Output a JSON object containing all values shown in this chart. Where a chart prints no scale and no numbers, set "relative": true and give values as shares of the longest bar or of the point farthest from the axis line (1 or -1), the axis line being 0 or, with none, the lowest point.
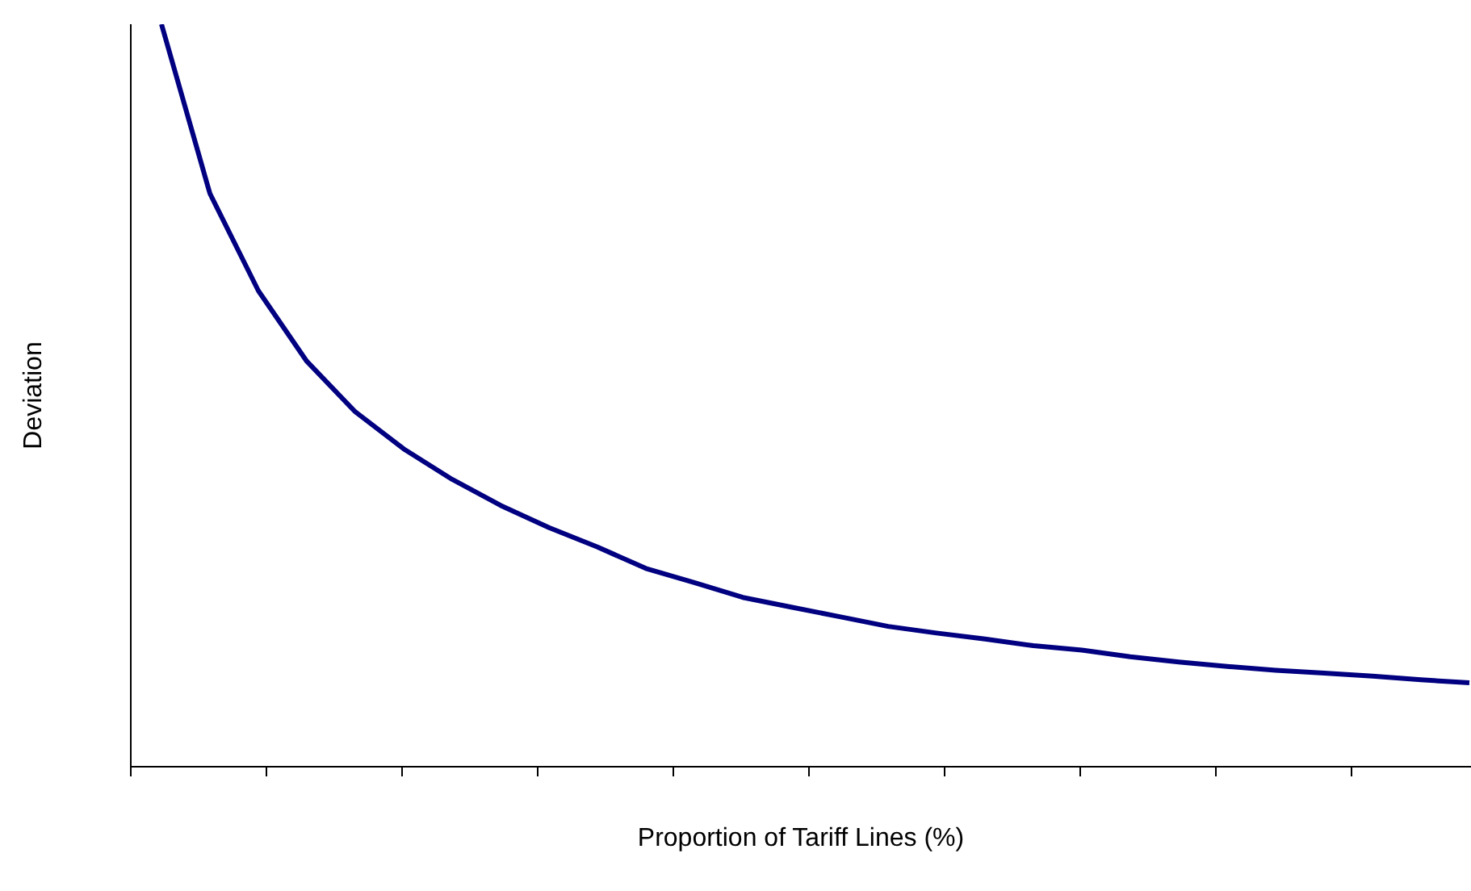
{
  "chart_data": {
    "type": "line",
    "relative": true,
    "xlabel": "Proportion of Tariff Lines (%)",
    "ylabel": "Deviation",
    "categories": [
      null,
      null,
      null,
      null,
      null,
      null,
      null,
      null,
      null,
      null,
      null,
      null,
      null,
      null,
      null,
      null,
      null,
      null,
      null,
      null,
      null,
      null,
      null,
      null,
      null,
      null,
      null,
      null
    ],
    "series": [
      {
        "color": "#000080",
        "values": [
          1.0,
          0.772,
          0.641,
          0.546,
          0.478,
          0.428,
          0.387,
          0.352,
          0.322,
          0.296,
          0.267,
          0.248,
          0.228,
          0.215,
          0.202,
          0.189,
          0.18,
          0.172,
          0.163,
          0.157,
          0.148,
          0.141,
          0.135,
          0.13,
          0.126,
          0.122,
          0.117,
          0.113
        ]
      }
    ],
    "grid": false,
    "legend": false,
    "marker": "none",
    "line_style": "solid"
  }
}
